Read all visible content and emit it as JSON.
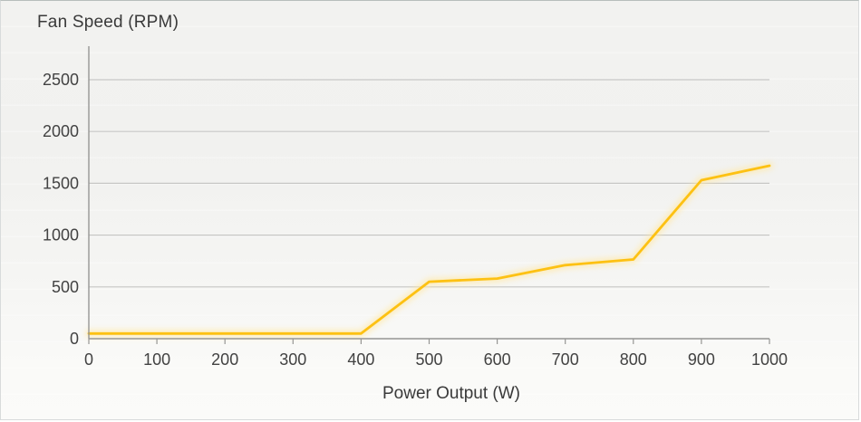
{
  "header": {
    "title": "Fan Speed (RPM)"
  },
  "axes": {
    "x_label": "Power Output (W)",
    "x_tick_labels": [
      "0",
      "100",
      "200",
      "300",
      "400",
      "500",
      "600",
      "700",
      "800",
      "900",
      "1000"
    ],
    "y_tick_labels": [
      "0",
      "500",
      "1000",
      "1500",
      "2000",
      "2500"
    ]
  },
  "colors": {
    "line": "#FDC113",
    "line_glow": "#FFE9A8",
    "gridline": "#c7c7c5",
    "axis": "#969694",
    "text": "#3a3a3a"
  },
  "chart_data": {
    "type": "line",
    "title": "Fan Speed (RPM)",
    "xlabel": "Power Output (W)",
    "ylabel": "Fan Speed (RPM)",
    "x": [
      0,
      100,
      200,
      300,
      400,
      500,
      600,
      700,
      800,
      900,
      1000
    ],
    "series": [
      {
        "name": "Fan Speed",
        "values": [
          50,
          50,
          50,
          50,
          50,
          550,
          580,
          710,
          765,
          1530,
          1670
        ]
      }
    ],
    "xlim": [
      0,
      1000
    ],
    "ylim": [
      0,
      2800
    ],
    "y_gridlines": [
      500,
      1000,
      1500,
      2000,
      2500
    ],
    "x_ticks": [
      0,
      100,
      200,
      300,
      400,
      500,
      600,
      700,
      800,
      900,
      1000
    ],
    "grid": "horizontal-only",
    "legend": "none"
  }
}
